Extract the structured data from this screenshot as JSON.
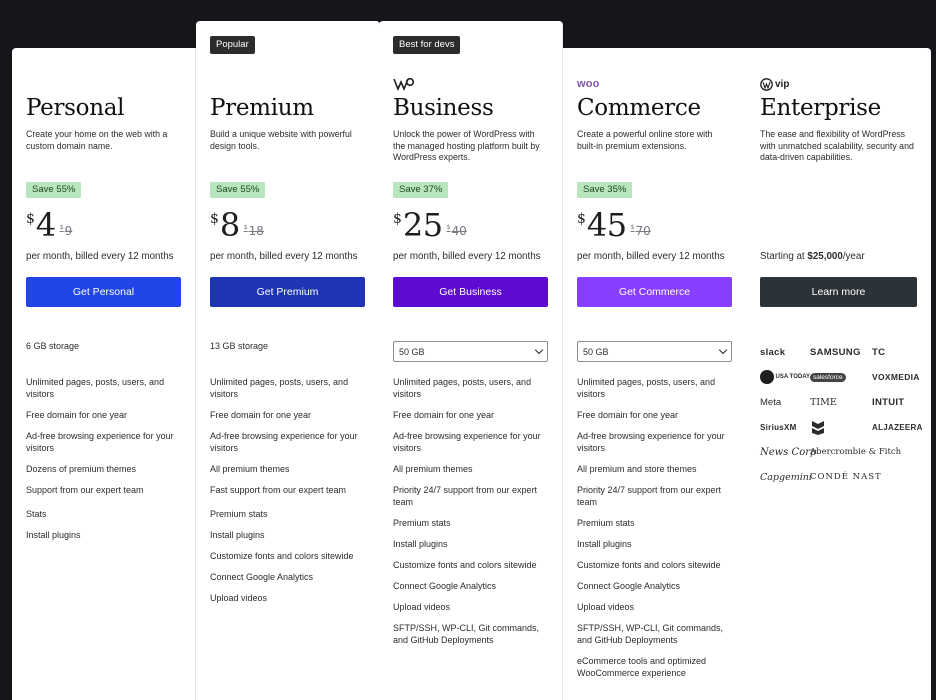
{
  "plans": [
    {
      "name": "Personal",
      "desc": "Create your home on the web with a custom domain name.",
      "save": "Save 55%",
      "currency": "$",
      "price": "4",
      "old_currency": "$",
      "old_price": "9",
      "billing": "per month, billed every 12 months",
      "cta": "Get Personal",
      "cta_color": "#2145e6",
      "storage": "6 GB storage",
      "features": [
        "Unlimited pages, posts, users, and visitors",
        "Free domain for one year",
        "Ad-free browsing experience for your visitors",
        "Dozens of premium themes",
        "Support from our expert team",
        "Stats",
        "Install plugins"
      ]
    },
    {
      "tag": "Popular",
      "name": "Premium",
      "desc": "Build a unique website with powerful design tools.",
      "save": "Save 55%",
      "currency": "$",
      "price": "8",
      "old_currency": "$",
      "old_price": "18",
      "billing": "per month, billed every 12 months",
      "cta": "Get Premium",
      "cta_color": "#1d35b4",
      "storage": "13 GB storage",
      "features": [
        "Unlimited pages, posts, users, and visitors",
        "Free domain for one year",
        "Ad-free browsing experience for your visitors",
        "All premium themes",
        "Fast support from our expert team",
        "Premium stats",
        "Install plugins",
        "Customize fonts and colors sitewide",
        "Connect Google Analytics",
        "Upload videos"
      ]
    },
    {
      "tag": "Best for devs",
      "logo": "wp-business-logo",
      "name": "Business",
      "desc": "Unlock the power of WordPress with the managed hosting platform built by WordPress experts.",
      "save": "Save 37%",
      "currency": "$",
      "price": "25",
      "old_currency": "$",
      "old_price": "40",
      "billing": "per month, billed every 12 months",
      "cta": "Get Business",
      "cta_color": "#5d0bd1",
      "storage_select": "50 GB",
      "features": [
        "Unlimited pages, posts, users, and visitors",
        "Free domain for one year",
        "Ad-free browsing experience for your visitors",
        "All premium themes",
        "Priority 24/7 support from our expert team",
        "Premium stats",
        "Install plugins",
        "Customize fonts and colors sitewide",
        "Connect Google Analytics",
        "Upload videos",
        "SFTP/SSH, WP-CLI, Git commands, and GitHub Deployments"
      ]
    },
    {
      "logo_text": "woo",
      "name": "Commerce",
      "desc": "Create a powerful online store with built-in premium extensions.",
      "save": "Save 35%",
      "currency": "$",
      "price": "45",
      "old_currency": "$",
      "old_price": "70",
      "billing": "per month, billed every 12 months",
      "cta": "Get Commerce",
      "cta_color": "#873eff",
      "storage_select": "50 GB",
      "features": [
        "Unlimited pages, posts, users, and visitors",
        "Free domain for one year",
        "Ad-free browsing experience for your visitors",
        "All premium and store themes",
        "Priority 24/7 support from our expert team",
        "Premium stats",
        "Install plugins",
        "Customize fonts and colors sitewide",
        "Connect Google Analytics",
        "Upload videos",
        "SFTP/SSH, WP-CLI, Git commands, and GitHub Deployments",
        "eCommerce tools and optimized WooCommerce experience"
      ]
    },
    {
      "logo_text": "vip",
      "name": "Enterprise",
      "desc": "The ease and flexibility of WordPress with unmatched scalability, security and data-driven capabilities.",
      "billing_prefix": "Starting at ",
      "billing_amount": "$25,000",
      "billing_suffix": "/year",
      "cta": "Learn more",
      "cta_color": "#2c3338",
      "brands": [
        "slack",
        "SAMSUNG",
        "TC",
        "USA TODAY",
        "salesforce",
        "VOXMEDIA",
        "Meta",
        "TIME",
        "INTUIT",
        "SiriusXM",
        "Chevron",
        "ALJAZEERA",
        "News Corp",
        "Abercrombie & Fitch",
        "Capgemini",
        "CONDÉ NAST"
      ]
    }
  ]
}
